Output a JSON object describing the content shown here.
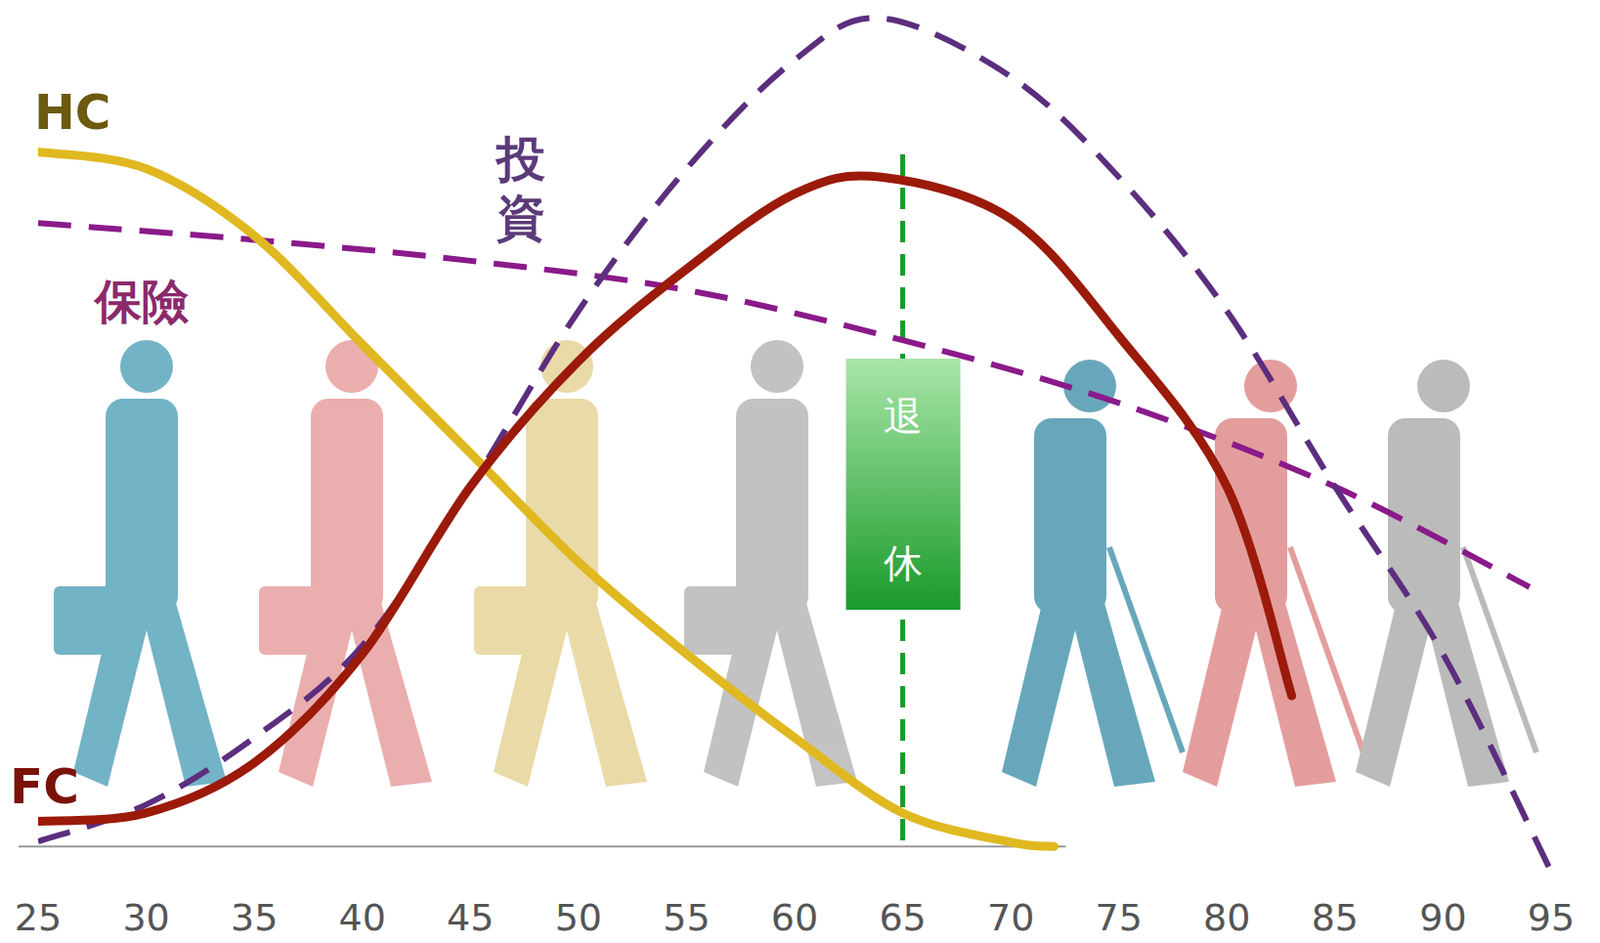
{
  "chart_data": {
    "type": "line",
    "xlim": [
      25,
      95
    ],
    "ylim": [
      -5,
      100
    ],
    "xticks": [
      25,
      30,
      35,
      40,
      45,
      50,
      55,
      60,
      65,
      70,
      75,
      80,
      85,
      90,
      95
    ],
    "yticks": [],
    "tick_labels": "x",
    "grid": false,
    "series": [
      {
        "name": "HC",
        "color": "#e0b820",
        "line_style": "solid",
        "x": [
          25,
          30,
          35,
          40,
          45,
          50,
          55,
          60,
          65,
          70,
          72
        ],
        "values": [
          83,
          81,
          73,
          60,
          47,
          34,
          23,
          13,
          4,
          0.5,
          0
        ]
      },
      {
        "name": "FC",
        "color": "#9b1a0a",
        "line_style": "solid",
        "x": [
          25,
          30,
          35,
          40,
          45,
          50,
          55,
          60,
          64,
          70,
          75,
          80,
          83
        ],
        "values": [
          3,
          4,
          10,
          23,
          43,
          58,
          69,
          78,
          80,
          75,
          61,
          43,
          18
        ]
      },
      {
        "name": "保險",
        "color": "#8a1a8a",
        "line_style": "dashed",
        "x": [
          25,
          35,
          45,
          55,
          65,
          75,
          85,
          94
        ],
        "values": [
          74.5,
          72.5,
          70,
          66.5,
          60.5,
          53,
          43,
          31
        ]
      },
      {
        "name": "投資",
        "color": "#5c2e7e",
        "line_style": "dashed",
        "x": [
          25,
          30,
          35,
          40,
          45,
          50,
          55,
          60,
          64,
          70,
          75,
          80,
          85,
          90,
          95
        ],
        "values": [
          0.6,
          5,
          13,
          24,
          43,
          64,
          81,
          94,
          99,
          92,
          80,
          64,
          43,
          23,
          -3
        ]
      }
    ],
    "annotations": [
      {
        "x": 65,
        "text": "退休"
      }
    ]
  }
}
